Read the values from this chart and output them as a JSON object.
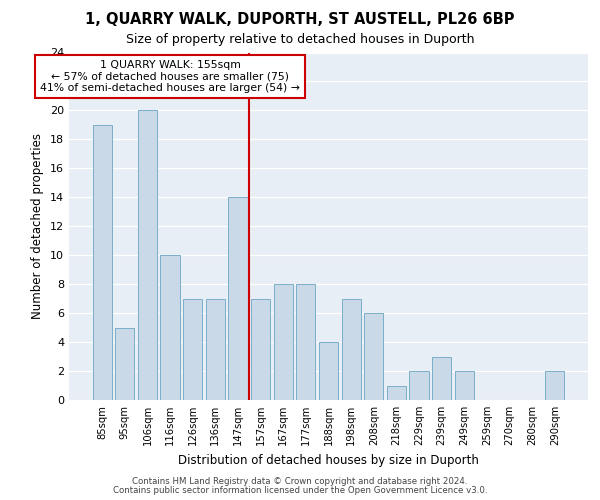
{
  "title1": "1, QUARRY WALK, DUPORTH, ST AUSTELL, PL26 6BP",
  "title2": "Size of property relative to detached houses in Duporth",
  "xlabel": "Distribution of detached houses by size in Duporth",
  "ylabel": "Number of detached properties",
  "categories": [
    "85sqm",
    "95sqm",
    "106sqm",
    "116sqm",
    "126sqm",
    "136sqm",
    "147sqm",
    "157sqm",
    "167sqm",
    "177sqm",
    "188sqm",
    "198sqm",
    "208sqm",
    "218sqm",
    "229sqm",
    "239sqm",
    "249sqm",
    "259sqm",
    "270sqm",
    "280sqm",
    "290sqm"
  ],
  "values": [
    19,
    5,
    20,
    10,
    7,
    7,
    14,
    7,
    8,
    8,
    4,
    7,
    6,
    1,
    2,
    3,
    2,
    0,
    0,
    0,
    2
  ],
  "bar_color": "#c9d9e8",
  "bar_edge_color": "#7aaec8",
  "vline_color": "#cc0000",
  "annotation_text": "1 QUARRY WALK: 155sqm\n← 57% of detached houses are smaller (75)\n41% of semi-detached houses are larger (54) →",
  "annotation_box_color": "#ffffff",
  "annotation_box_edge_color": "#cc0000",
  "ylim": [
    0,
    24
  ],
  "yticks": [
    0,
    2,
    4,
    6,
    8,
    10,
    12,
    14,
    16,
    18,
    20,
    22,
    24
  ],
  "background_color": "#e8eef5",
  "footer1": "Contains HM Land Registry data © Crown copyright and database right 2024.",
  "footer2": "Contains public sector information licensed under the Open Government Licence v3.0."
}
